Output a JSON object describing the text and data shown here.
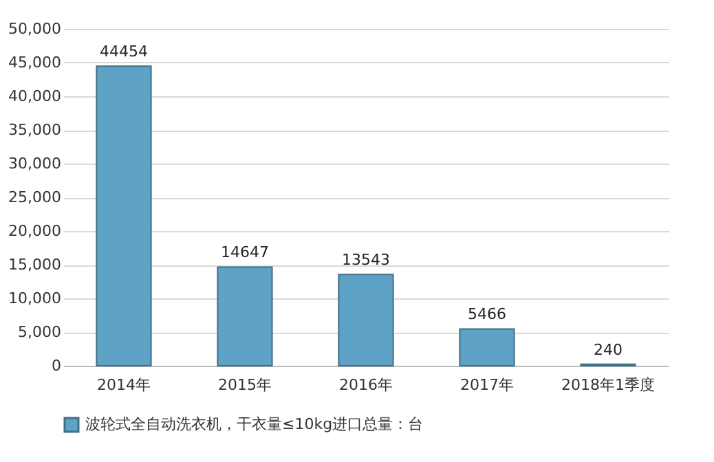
{
  "chart_data": {
    "type": "bar",
    "categories": [
      "2014年",
      "2015年",
      "2016年",
      "2017年",
      "2018年1季度"
    ],
    "series": [
      {
        "name": "波轮式全自动洗衣机，干衣量≤10kg进口总量：台",
        "color": "#5ea3c6",
        "values": [
          44454,
          14647,
          13543,
          5466,
          240
        ]
      }
    ],
    "ylim": [
      0,
      50000
    ],
    "yticks": [
      {
        "value": 0,
        "label": "0"
      },
      {
        "value": 5000,
        "label": "5,000"
      },
      {
        "value": 10000,
        "label": "10,000"
      },
      {
        "value": 15000,
        "label": "15,000"
      },
      {
        "value": 20000,
        "label": "20,000"
      },
      {
        "value": 25000,
        "label": "25,000"
      },
      {
        "value": 30000,
        "label": "30,000"
      },
      {
        "value": 35000,
        "label": "35,000"
      },
      {
        "value": 40000,
        "label": "40,000"
      },
      {
        "value": 45000,
        "label": "45,000"
      },
      {
        "value": 50000,
        "label": "50,000"
      }
    ],
    "grid": "y",
    "legend": "bottom",
    "data_labels": true
  }
}
